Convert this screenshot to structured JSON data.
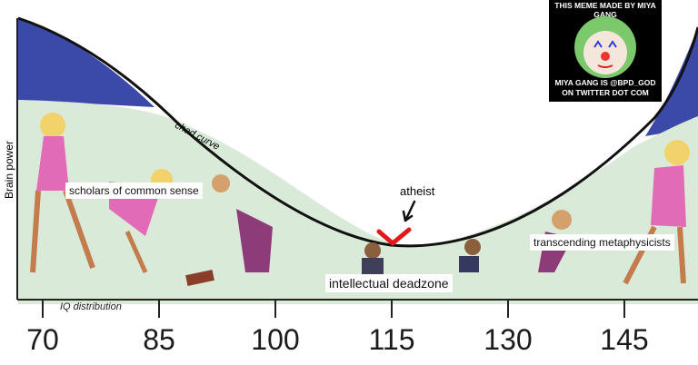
{
  "axis": {
    "y_label": "Brain power",
    "x_caption": "IQ distribution",
    "ticks": [
      "70",
      "85",
      "100",
      "115",
      "130",
      "145"
    ]
  },
  "curve_label": "chad curve",
  "labels": {
    "left": "scholars of common sense",
    "middle_top": "atheist",
    "middle": "intellectual deadzone",
    "right": "transcending metaphysicists"
  },
  "watermark": {
    "top": "THIS MEME MADE BY MIYA GANG",
    "bottom": "MIYA GANG IS @BPD_GOD ON TWITTER DOT COM",
    "icon": "clown-face-icon"
  },
  "colors": {
    "fill_green": "#d9ead8",
    "fill_blue": "#3b4aa8",
    "curve": "#111111",
    "arrow_red": "#e01a1a"
  }
}
